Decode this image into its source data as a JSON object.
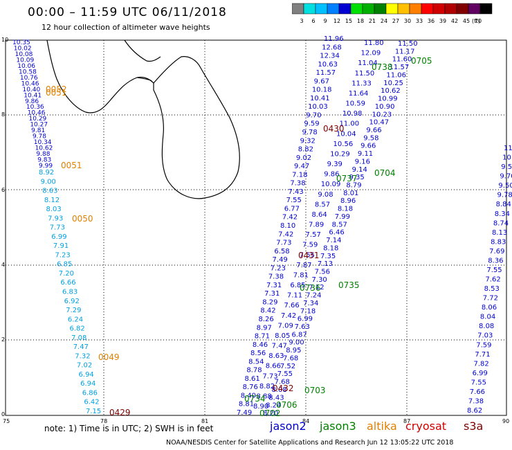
{
  "header": {
    "title": "00:00 – 11:59 UTC 06/11/2018",
    "subtitle": "12 hour collection of altimeter wave heights"
  },
  "legend": {
    "unit": "(ft)",
    "colors": [
      "#808080",
      "#00e0e0",
      "#00c0ff",
      "#0080ff",
      "#0000d0",
      "#00e000",
      "#00b000",
      "#008000",
      "#ffff00",
      "#ffc000",
      "#ff8000",
      "#ff0000",
      "#d00000",
      "#b00000",
      "#800000",
      "#600060",
      "#000000"
    ],
    "ticks": [
      "3",
      "6",
      "9",
      "12",
      "15",
      "18",
      "21",
      "24",
      "27",
      "30",
      "33",
      "36",
      "39",
      "42",
      "45",
      "70"
    ]
  },
  "axes": {
    "x_ticks": [
      "75",
      "78",
      "81",
      "84",
      "87",
      "90"
    ],
    "y_ticks": [
      "0",
      "2",
      "4",
      "6",
      "8",
      "10"
    ]
  },
  "pass_labels": [
    {
      "text": "0052",
      "color": "#e08000"
    },
    {
      "text": "0051",
      "color": "#e08000"
    },
    {
      "text": "0051",
      "color": "#e08000"
    },
    {
      "text": "0050",
      "color": "#e08000"
    },
    {
      "text": "0049",
      "color": "#e08000"
    },
    {
      "text": "0429",
      "color": "#800000"
    },
    {
      "text": "0430",
      "color": "#800000"
    },
    {
      "text": "0431",
      "color": "#800000"
    },
    {
      "text": "0432",
      "color": "#800000"
    },
    {
      "text": "0706",
      "color": "#008000"
    },
    {
      "text": "0738",
      "color": "#008000"
    },
    {
      "text": "0705",
      "color": "#008000"
    },
    {
      "text": "0737",
      "color": "#008000"
    },
    {
      "text": "0704",
      "color": "#008000"
    },
    {
      "text": "0736",
      "color": "#008000"
    },
    {
      "text": "0735",
      "color": "#008000"
    },
    {
      "text": "0703",
      "color": "#008000"
    },
    {
      "text": "0734",
      "color": "#008000"
    },
    {
      "text": "0702",
      "color": "#008000"
    }
  ],
  "tracks": [
    {
      "name": "track-a",
      "values": [
        "10.35",
        "10.02",
        "10.08",
        "10.09",
        "10.06",
        "10.58",
        "10.76",
        "10.46",
        "10.40",
        "10.41",
        "9.86",
        "10.36",
        "10.46",
        "10.29",
        "10.27",
        "9.81",
        "9.78",
        "10.34",
        "10.62",
        "9.88",
        "9.83",
        "9.99"
      ],
      "color": "#0000d0"
    },
    {
      "name": "track-b",
      "values": [
        "8.92",
        "9.00",
        "8.63",
        "8.12",
        "8.03",
        "7.93",
        "7.73",
        "6.99",
        "7.91",
        "7.23",
        "6.85",
        "7.20",
        "6.66",
        "6.83",
        "6.92",
        "7.29",
        "6.24",
        "6.82",
        "7.08",
        "7.47",
        "7.32",
        "7.02",
        "6.94",
        "6.94",
        "6.86",
        "6.42",
        "7.15"
      ],
      "color": "#00a0e0"
    },
    {
      "name": "track-c",
      "values": [
        "11.96",
        "12.68",
        "12.34",
        "10.63",
        "11.57",
        "9.67",
        "10.18",
        "10.41",
        "10.03",
        "9.70",
        "9.59",
        "9.78",
        "9.32",
        "8.82",
        "9.02",
        "9.47",
        "7.18",
        "7.38",
        "7.43",
        "7.55",
        "6.77",
        "7.42",
        "8.10",
        "7.42",
        "7.73",
        "6.58",
        "7.49",
        "7.23",
        "7.38",
        "7.31",
        "7.31",
        "8.29",
        "8.42",
        "8.26",
        "8.97",
        "8.71",
        "8.46",
        "8.56",
        "8.54",
        "8.78",
        "8.61",
        "8.76",
        "8.40",
        "8.81",
        "7.49"
      ],
      "color": "#0000d0"
    },
    {
      "name": "track-d",
      "values": [
        "11.80",
        "12.09",
        "11.04",
        "11.50",
        "11.33",
        "11.64",
        "10.59",
        "10.98",
        "11.00",
        "10.04",
        "10.56",
        "10.29",
        "9.39",
        "9.86",
        "10.09",
        "9.08",
        "8.57",
        "8.64",
        "7.89",
        "7.57",
        "7.59",
        "7.55",
        "7.87",
        "7.81",
        "6.85",
        "7.11",
        "7.66",
        "7.42",
        "7.09",
        "8.05",
        "7.47",
        "8.63",
        "8.66",
        "7.73",
        "8.82",
        "8.88",
        "8.90"
      ],
      "color": "#0000d0"
    },
    {
      "name": "track-e",
      "values": [
        "11.50",
        "11.17",
        "11.60",
        "11.57",
        "11.06",
        "10.25",
        "10.62",
        "10.99",
        "10.90",
        "10.23",
        "10.47",
        "9.66",
        "9.58",
        "9.66",
        "9.11",
        "9.16",
        "9.14",
        "9.35",
        "8.79",
        "8.01",
        "8.96",
        "8.18",
        "7.99",
        "8.57",
        "6.46",
        "7.14",
        "8.18",
        "7.35",
        "7.13",
        "7.56",
        "7.30",
        "7.12",
        "7.24",
        "7.34",
        "7.18",
        "6.99",
        "7.63",
        "6.87",
        "9.00",
        "8.95",
        "7.68",
        "7.52",
        "7.55",
        "7.68",
        "8.08",
        "8.43",
        "8.24",
        "8.20"
      ],
      "color": "#0000d0"
    },
    {
      "name": "track-f",
      "values": [
        "11.",
        "10.",
        "9.5",
        "9.70",
        "9.50",
        "9.78",
        "8.84",
        "8.34",
        "8.74",
        "8.13",
        "8.83",
        "7.69",
        "8.36",
        "7.55",
        "7.62",
        "8.53",
        "7.72",
        "8.06",
        "8.04",
        "8.08",
        "7.03",
        "7.59",
        "7.71",
        "7.82",
        "6.99",
        "7.55",
        "7.66",
        "7.38",
        "8.62"
      ],
      "color": "#0000d0"
    }
  ],
  "satellites": [
    {
      "name": "jason2",
      "color": "#0000d0"
    },
    {
      "name": "jason3",
      "color": "#008000"
    },
    {
      "name": "altika",
      "color": "#e08000"
    },
    {
      "name": "cryosat",
      "color": "#d00000"
    },
    {
      "name": "s3a",
      "color": "#800000"
    }
  ],
  "note": "note: 1) Time is in UTC; 2) SWH is in feet",
  "footer": "NOAA/NESDIS Center for Satellite Applications and Research   Jun 12 13:05:22 UTC 2018"
}
